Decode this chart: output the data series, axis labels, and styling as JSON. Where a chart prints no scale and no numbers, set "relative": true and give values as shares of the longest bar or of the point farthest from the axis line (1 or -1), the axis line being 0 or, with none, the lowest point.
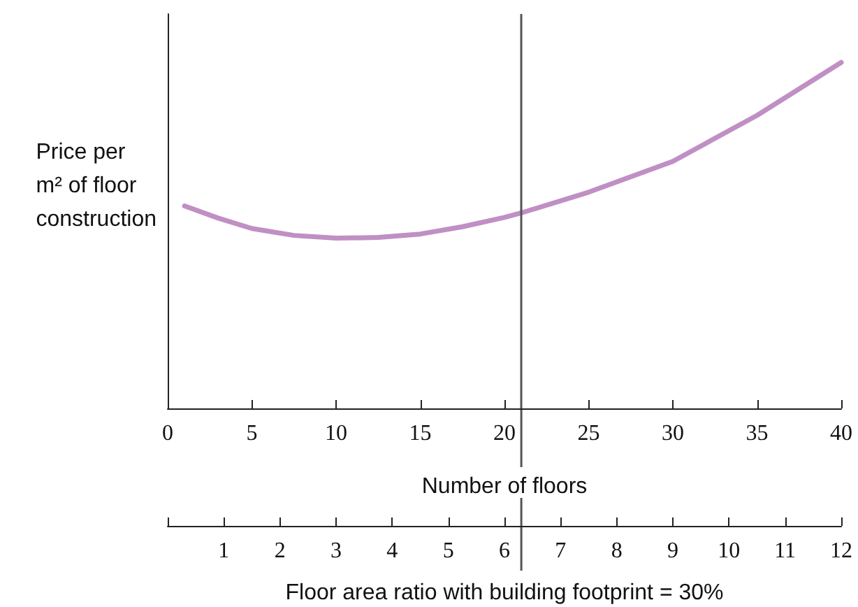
{
  "chart_data": {
    "type": "line",
    "relative": true,
    "ylabel": "Price per\nm² of floor\nconstruction",
    "xlabel": "Number of floors",
    "x2label": "Floor area ratio with building footprint = 30%",
    "xlim": [
      0,
      40
    ],
    "xticks": [
      0,
      5,
      10,
      15,
      20,
      25,
      30,
      35,
      40
    ],
    "x2lim": [
      0,
      12
    ],
    "x2ticks": [
      {
        "value": 0,
        "label": null
      },
      1,
      2,
      3,
      4,
      5,
      6,
      7,
      8,
      9,
      10,
      11,
      12
    ],
    "series": [
      {
        "color": "#c08fc4",
        "x": [
          1,
          3,
          5,
          7.5,
          10,
          12.5,
          15,
          17.5,
          20,
          21,
          25,
          30,
          35,
          40
        ],
        "values": [
          0.585,
          0.55,
          0.52,
          0.5,
          0.492,
          0.494,
          0.504,
          0.525,
          0.552,
          0.565,
          0.625,
          0.714,
          0.847,
          1
        ]
      }
    ],
    "ref_lines": [
      {
        "axis": "x",
        "value": 21,
        "color": "#555555"
      }
    ],
    "marker": "none",
    "line_style": "solid"
  }
}
